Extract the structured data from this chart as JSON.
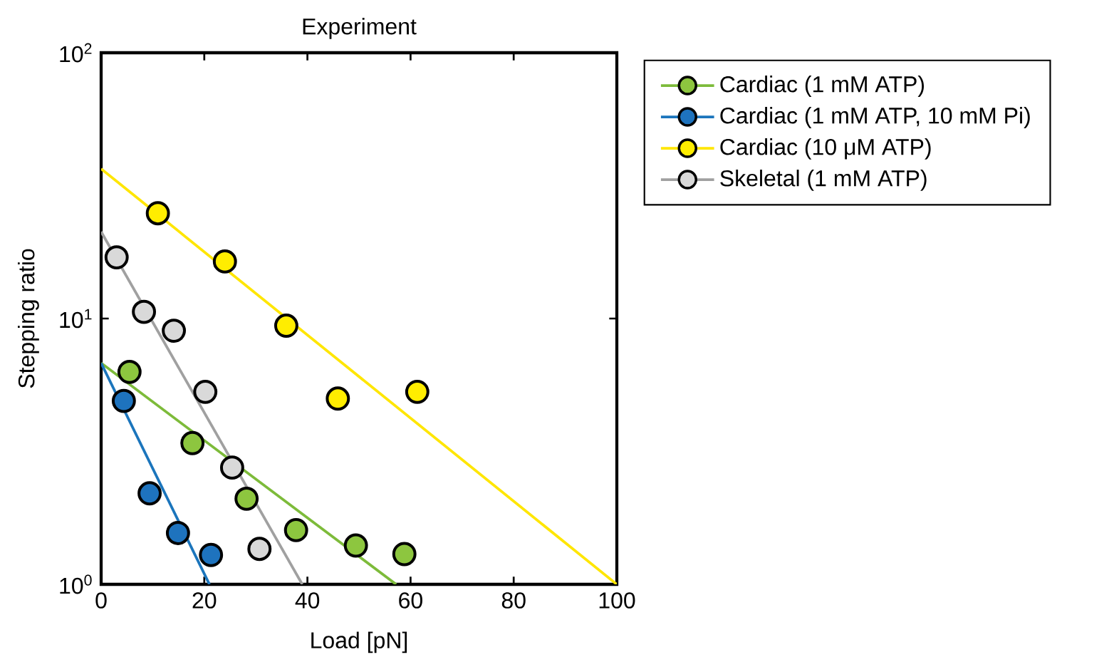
{
  "chart_data": {
    "type": "scatter",
    "title": "Experiment",
    "xlabel": "Load [pN]",
    "ylabel": "Stepping ratio",
    "xlim": [
      0,
      100
    ],
    "xticks": [
      0,
      20,
      40,
      60,
      80,
      100
    ],
    "ylim": [
      1,
      100
    ],
    "yticks": [
      {
        "value": 1,
        "label": "10$^{0}$"
      },
      {
        "value": 10,
        "label": "10$^{1}$"
      },
      {
        "value": 100,
        "label": "10$^{2}$"
      }
    ],
    "log": "y",
    "grid": false,
    "legend": "right",
    "series": [
      {
        "marker": "circle",
        "name": "Cardiac (1 mM ATP)",
        "color": "#8dc63f",
        "x": [
          5.5,
          17.7,
          28.2,
          37.8,
          49.4,
          58.8
        ],
        "values": [
          6.3,
          3.4,
          2.1,
          1.6,
          1.4,
          1.3
        ]
      },
      {
        "marker": "circle",
        "name": "Cardiac (1 mM ATP, 10 mM Pi)",
        "color": "#1e73be",
        "x": [
          4.4,
          9.4,
          14.9,
          21.3
        ],
        "values": [
          4.9,
          2.2,
          1.56,
          1.29
        ]
      },
      {
        "marker": "circle",
        "name": "Cardiac (10 μM ATP)",
        "color": "#ffed00",
        "x": [
          11.0,
          24.0,
          35.9,
          45.9,
          61.3
        ],
        "values": [
          24.9,
          16.4,
          9.4,
          5.0,
          5.3
        ]
      },
      {
        "marker": "circle",
        "name": "Skeletal (1 mM ATP)",
        "color": "#d9d9d9",
        "x": [
          3.0,
          8.3,
          14.1,
          20.2,
          25.4,
          30.7
        ],
        "values": [
          17,
          10.6,
          9.0,
          5.3,
          2.75,
          1.36
        ]
      },
      {
        "type": "line",
        "marker": "none",
        "color": "#7dbb3a",
        "x": [
          0,
          57.2
        ],
        "values": [
          6.8,
          1
        ]
      },
      {
        "type": "line",
        "marker": "none",
        "color": "#1b75bc",
        "x": [
          0,
          21.0
        ],
        "values": [
          6.8,
          1
        ]
      },
      {
        "type": "line",
        "marker": "none",
        "color": "#ffe600",
        "x": [
          0,
          100
        ],
        "values": [
          36.6,
          1
        ]
      },
      {
        "type": "line",
        "marker": "none",
        "color": "#a0a0a0",
        "x": [
          0,
          39.0
        ],
        "values": [
          21.2,
          1
        ]
      }
    ]
  }
}
